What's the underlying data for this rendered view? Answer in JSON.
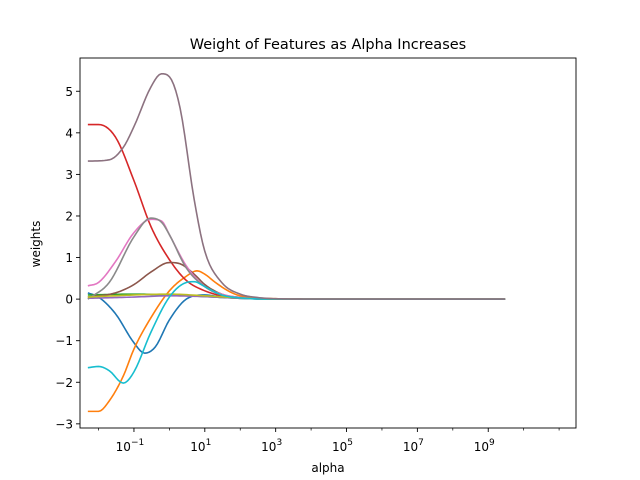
{
  "chart_data": {
    "type": "line",
    "title": "Weight of Features as Alpha Increases",
    "xlabel": "alpha",
    "ylabel": "weights",
    "xscale": "log",
    "xlim": [
      0.003,
      300000000000
    ],
    "ylim": [
      -3.1,
      5.8
    ],
    "grid": false,
    "legend": "none",
    "x_ticks": [
      {
        "value": 0.1,
        "base": "10",
        "exp": "−1"
      },
      {
        "value": 10,
        "base": "10",
        "exp": "1"
      },
      {
        "value": 1000,
        "base": "10",
        "exp": "3"
      },
      {
        "value": 100000,
        "base": "10",
        "exp": "5"
      },
      {
        "value": 10000000,
        "base": "10",
        "exp": "7"
      },
      {
        "value": 1000000000,
        "base": "10",
        "exp": "9"
      }
    ],
    "y_ticks": [
      {
        "value": -3,
        "label": "−3"
      },
      {
        "value": -2,
        "label": "−2"
      },
      {
        "value": -1,
        "label": "−1"
      },
      {
        "value": 0,
        "label": "0"
      },
      {
        "value": 1,
        "label": "1"
      },
      {
        "value": 2,
        "label": "2"
      },
      {
        "value": 3,
        "label": "3"
      },
      {
        "value": 4,
        "label": "4"
      },
      {
        "value": 5,
        "label": "5"
      }
    ],
    "series": [
      {
        "color": "#1f77b4",
        "x": [
          0.005,
          0.01,
          0.03,
          0.1,
          0.2,
          0.4,
          1,
          3,
          10,
          30,
          100,
          1000,
          10000,
          3000000000
        ],
        "values": [
          0.15,
          0.05,
          -0.35,
          -1.05,
          -1.3,
          -1.15,
          -0.5,
          0.0,
          0.1,
          0.05,
          0.02,
          0.0,
          0.0,
          0.0
        ]
      },
      {
        "color": "#ff7f0e",
        "x": [
          0.005,
          0.01,
          0.02,
          0.05,
          0.1,
          0.3,
          1,
          3,
          6,
          10,
          20,
          50,
          100,
          1000,
          10000,
          3000000000
        ],
        "values": [
          -2.7,
          -2.7,
          -2.45,
          -1.85,
          -1.2,
          -0.45,
          0.2,
          0.55,
          0.68,
          0.6,
          0.4,
          0.18,
          0.08,
          0.01,
          0.0,
          0.0
        ]
      },
      {
        "color": "#2ca02c",
        "x": [
          0.005,
          0.1,
          1,
          10,
          100,
          1000,
          3000000000
        ],
        "values": [
          0.1,
          0.12,
          0.1,
          0.06,
          0.02,
          0.0,
          0.0
        ]
      },
      {
        "color": "#d62728",
        "x": [
          0.005,
          0.01,
          0.03,
          0.1,
          0.3,
          1,
          3,
          10,
          30,
          100,
          1000,
          10000,
          3000000000
        ],
        "values": [
          4.2,
          4.2,
          3.9,
          2.85,
          1.75,
          0.95,
          0.45,
          0.2,
          0.08,
          0.03,
          0.0,
          0.0,
          0.0
        ]
      },
      {
        "color": "#9467bd",
        "x": [
          0.005,
          0.1,
          1,
          10,
          100,
          1000,
          3000000000
        ],
        "values": [
          0.02,
          0.05,
          0.08,
          0.06,
          0.02,
          0.0,
          0.0
        ]
      },
      {
        "color": "#8c564b",
        "x": [
          0.005,
          0.03,
          0.1,
          0.3,
          1,
          2,
          5,
          10,
          30,
          100,
          1000,
          10000,
          3000000000
        ],
        "values": [
          0.05,
          0.15,
          0.35,
          0.65,
          0.88,
          0.85,
          0.6,
          0.35,
          0.12,
          0.04,
          0.0,
          0.0,
          0.0
        ]
      },
      {
        "color": "#e377c2",
        "x": [
          0.005,
          0.01,
          0.03,
          0.1,
          0.3,
          0.6,
          1,
          3,
          10,
          30,
          100,
          1000,
          10000,
          3000000000
        ],
        "values": [
          0.32,
          0.4,
          0.9,
          1.6,
          1.92,
          1.88,
          1.55,
          0.8,
          0.3,
          0.12,
          0.04,
          0.0,
          0.0,
          0.0
        ]
      },
      {
        "color": "#8a8a8a",
        "x": [
          0.005,
          0.02,
          0.1,
          0.3,
          0.6,
          1,
          3,
          10,
          30,
          100,
          1000,
          10000,
          3000000000
        ],
        "values": [
          0.0,
          0.4,
          1.5,
          1.95,
          1.85,
          1.55,
          0.75,
          0.3,
          0.1,
          0.03,
          0.0,
          0.0,
          0.0
        ]
      },
      {
        "color": "#bcbd22",
        "x": [
          0.005,
          0.1,
          1,
          10,
          100,
          1000,
          3000000000
        ],
        "values": [
          0.05,
          0.1,
          0.12,
          0.08,
          0.03,
          0.0,
          0.0
        ]
      },
      {
        "color": "#17becf",
        "x": [
          0.005,
          0.01,
          0.02,
          0.05,
          0.1,
          0.3,
          1,
          3,
          5,
          10,
          30,
          100,
          1000,
          10000,
          3000000000
        ],
        "values": [
          -1.65,
          -1.62,
          -1.72,
          -2.02,
          -1.75,
          -0.8,
          0.05,
          0.4,
          0.42,
          0.3,
          0.1,
          0.03,
          0.0,
          0.0,
          0.0
        ]
      },
      {
        "color": "#8c7280",
        "x": [
          0.005,
          0.02,
          0.05,
          0.1,
          0.3,
          0.6,
          1,
          2,
          5,
          10,
          30,
          100,
          300,
          1000,
          10000,
          3000000000
        ],
        "values": [
          3.32,
          3.35,
          3.65,
          4.15,
          5.1,
          5.42,
          5.35,
          4.6,
          2.4,
          1.15,
          0.4,
          0.12,
          0.04,
          0.01,
          0.0,
          0.0
        ]
      }
    ]
  }
}
